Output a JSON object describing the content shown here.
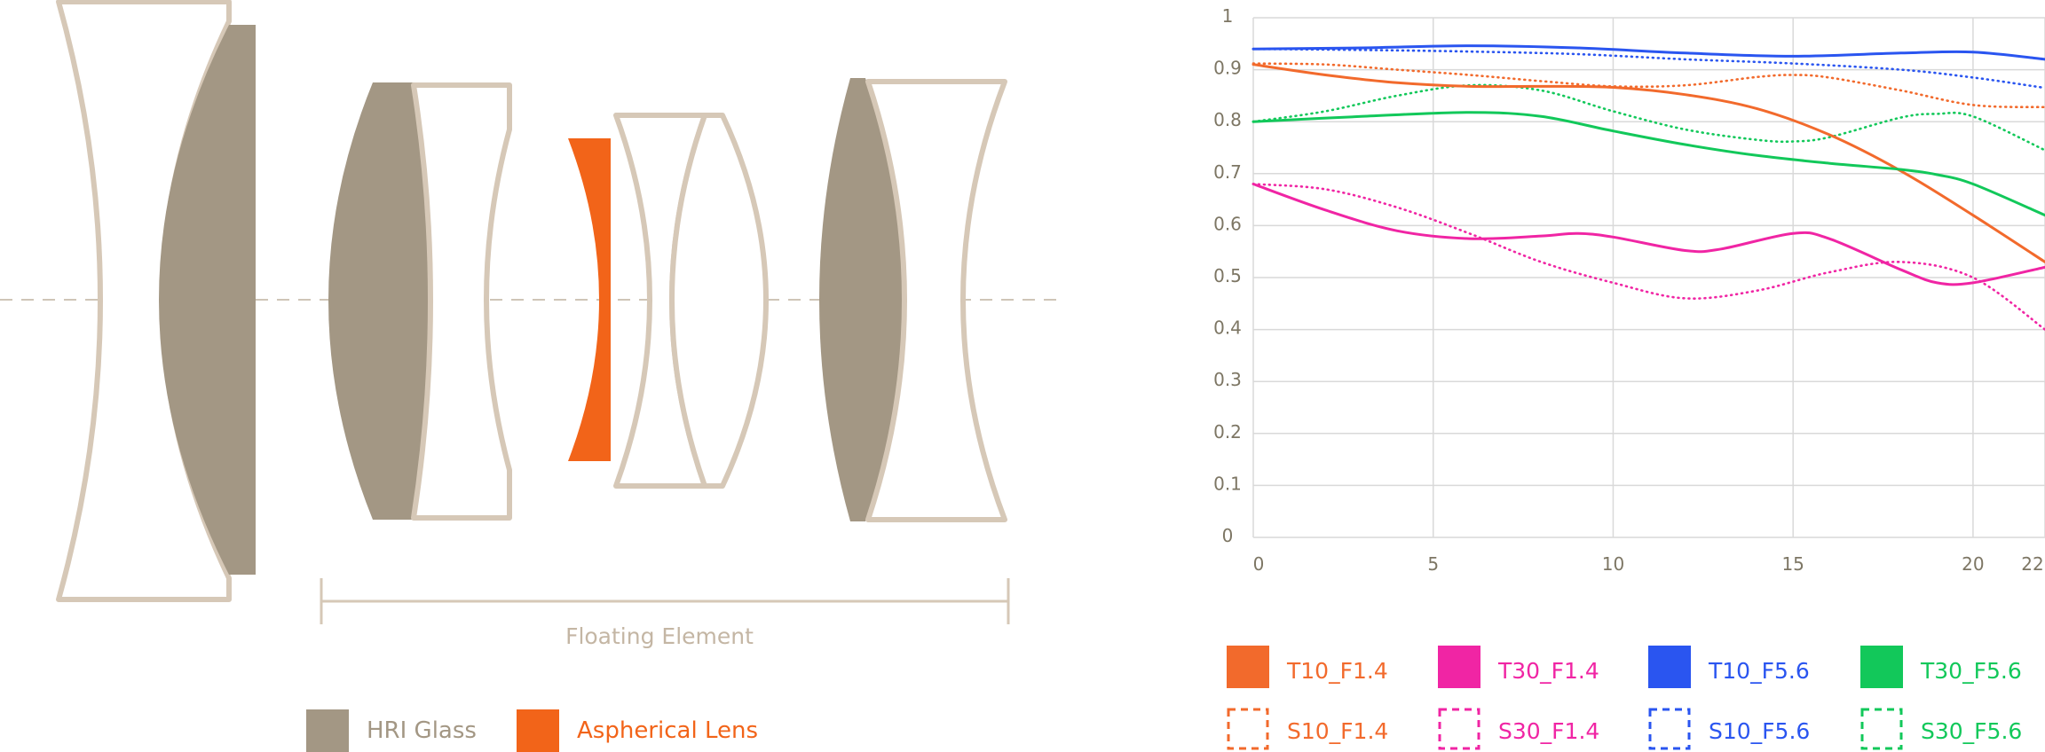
{
  "colors": {
    "frame": "#D6C8B7",
    "hri": "#A39784",
    "aspherical": "#F26419",
    "axis_text": "#7D7664",
    "grid": "#D9D9D9",
    "t10_f14": "#F26A2C",
    "t30_f14": "#F025A4",
    "t10_f56": "#2A55F0",
    "t30_f56": "#12C85A"
  },
  "diagram": {
    "bracket_label": "Floating Element",
    "legend": {
      "hri": "HRI Glass",
      "aspherical": "Aspherical Lens"
    }
  },
  "chart_data": {
    "type": "line",
    "title": "",
    "xlabel": "",
    "ylabel": "",
    "xlim": [
      0,
      22
    ],
    "ylim": [
      0,
      1
    ],
    "x_ticks": [
      "0",
      "5",
      "10",
      "15",
      "20",
      "22"
    ],
    "x_tick_values": [
      0,
      5,
      10,
      15,
      20,
      22
    ],
    "y_ticks": [
      "0",
      "0.1",
      "0.2",
      "0.3",
      "0.4",
      "0.5",
      "0.6",
      "0.7",
      "0.8",
      "0.9",
      "1"
    ],
    "y_tick_values": [
      0,
      0.1,
      0.2,
      0.3,
      0.4,
      0.5,
      0.6,
      0.7,
      0.8,
      0.9,
      1
    ],
    "grid": true,
    "legend_position": "bottom",
    "series": [
      {
        "id": "t10_f14",
        "name": "T10_F1.4",
        "style": "solid",
        "color": "#F26A2C",
        "x": [
          0,
          2,
          4,
          6,
          8,
          10,
          12,
          14,
          16,
          18,
          20,
          22
        ],
        "y": [
          0.91,
          0.89,
          0.875,
          0.868,
          0.868,
          0.866,
          0.852,
          0.825,
          0.775,
          0.705,
          0.62,
          0.53
        ]
      },
      {
        "id": "t30_f14",
        "name": "T30_F1.4",
        "style": "solid",
        "color": "#F025A4",
        "x": [
          0,
          2,
          4,
          6,
          8,
          9,
          10,
          12,
          13,
          15,
          16,
          18,
          19,
          20,
          22
        ],
        "y": [
          0.68,
          0.63,
          0.59,
          0.575,
          0.58,
          0.585,
          0.578,
          0.552,
          0.555,
          0.585,
          0.575,
          0.515,
          0.49,
          0.49,
          0.52
        ]
      },
      {
        "id": "t10_f56",
        "name": "T10_F5.6",
        "style": "solid",
        "color": "#2A55F0",
        "x": [
          0,
          3,
          6,
          9,
          12,
          15,
          18,
          20,
          22
        ],
        "y": [
          0.94,
          0.942,
          0.946,
          0.942,
          0.932,
          0.926,
          0.932,
          0.934,
          0.92
        ]
      },
      {
        "id": "t30_f56",
        "name": "T30_F5.6",
        "style": "solid",
        "color": "#12C85A",
        "x": [
          0,
          3,
          6,
          8,
          10,
          12,
          14,
          16,
          18,
          19,
          20,
          22
        ],
        "y": [
          0.8,
          0.81,
          0.818,
          0.81,
          0.782,
          0.756,
          0.735,
          0.72,
          0.708,
          0.698,
          0.68,
          0.62
        ]
      },
      {
        "id": "s10_f14",
        "name": "S10_F1.4",
        "style": "dotted",
        "color": "#F26A2C",
        "x": [
          0,
          2,
          4,
          6,
          8,
          10,
          12,
          14,
          15,
          16,
          18,
          20,
          22
        ],
        "y": [
          0.912,
          0.91,
          0.9,
          0.89,
          0.878,
          0.868,
          0.87,
          0.886,
          0.89,
          0.885,
          0.86,
          0.832,
          0.828
        ]
      },
      {
        "id": "s30_f14",
        "name": "S30_F1.4",
        "style": "dotted",
        "color": "#F025A4",
        "x": [
          0,
          2,
          4,
          6,
          8,
          10,
          12,
          14,
          16,
          18,
          20,
          22
        ],
        "y": [
          0.68,
          0.67,
          0.635,
          0.585,
          0.53,
          0.49,
          0.46,
          0.475,
          0.51,
          0.53,
          0.5,
          0.4
        ]
      },
      {
        "id": "s10_f56",
        "name": "S10_F5.6",
        "style": "dotted",
        "color": "#2A55F0",
        "x": [
          0,
          3,
          6,
          9,
          12,
          15,
          18,
          20,
          22
        ],
        "y": [
          0.94,
          0.938,
          0.935,
          0.93,
          0.92,
          0.912,
          0.9,
          0.885,
          0.865
        ]
      },
      {
        "id": "s30_f56",
        "name": "S30_F5.6",
        "style": "dotted",
        "color": "#12C85A",
        "x": [
          0,
          2,
          4,
          6,
          8,
          10,
          12,
          14,
          15,
          16,
          18,
          19,
          20,
          22
        ],
        "y": [
          0.8,
          0.82,
          0.85,
          0.87,
          0.86,
          0.82,
          0.785,
          0.765,
          0.762,
          0.77,
          0.808,
          0.815,
          0.81,
          0.745
        ]
      }
    ]
  }
}
